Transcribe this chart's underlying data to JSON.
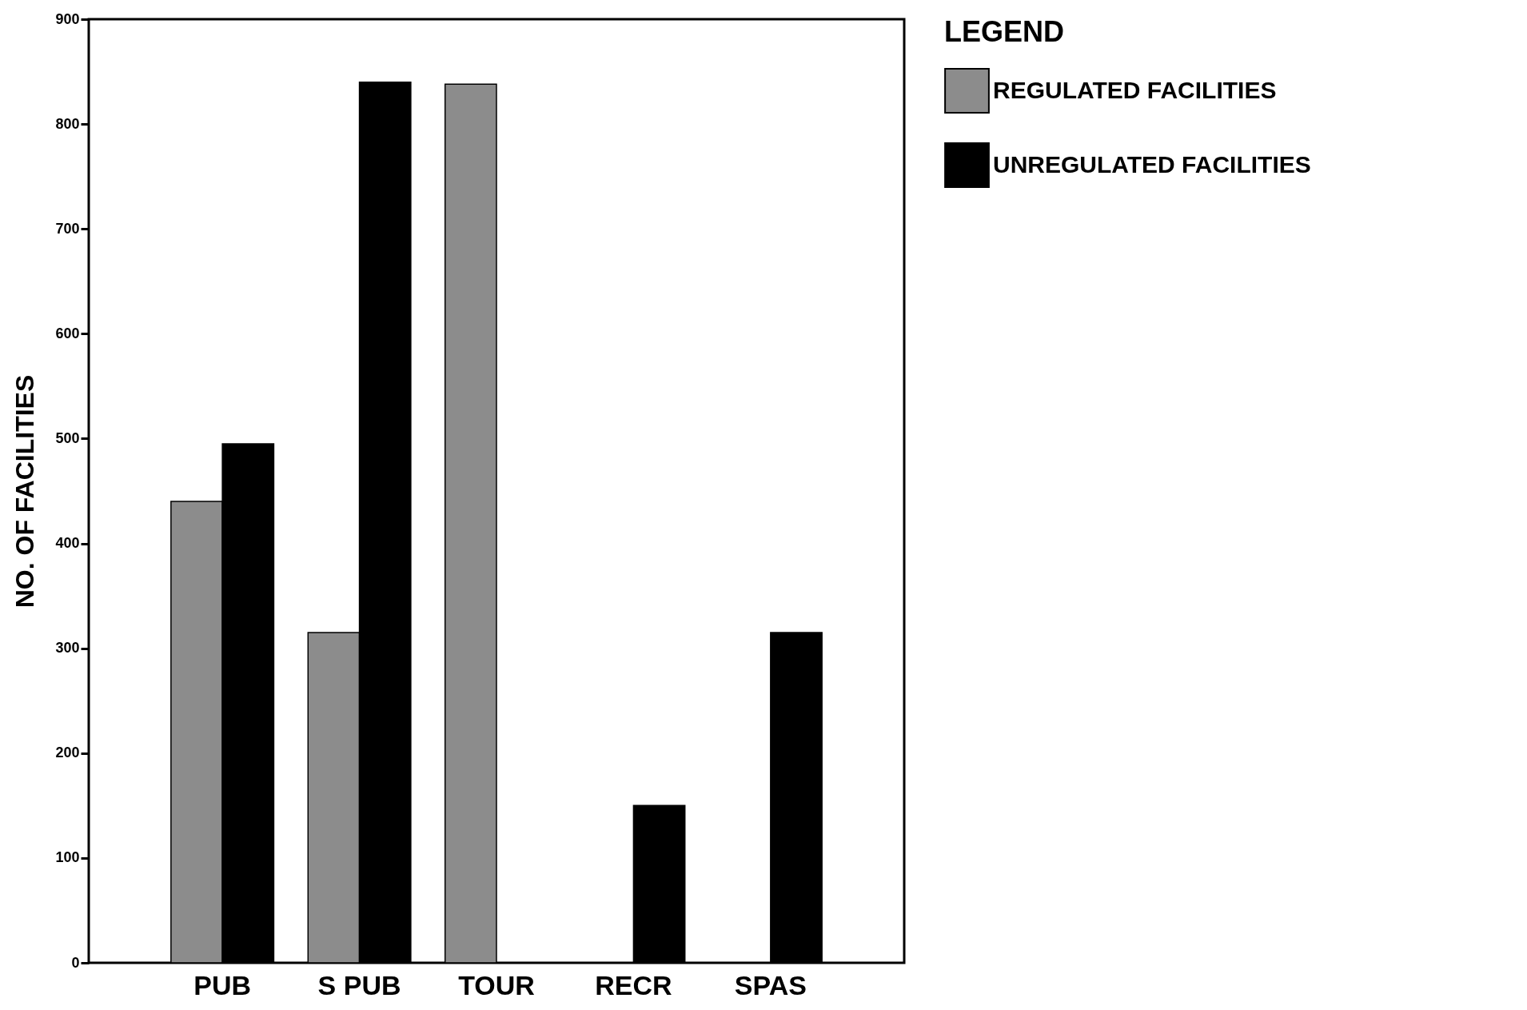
{
  "chart_data": {
    "type": "bar",
    "ylabel": "NO. OF FACILITIES",
    "legend_title": "LEGEND",
    "categories": [
      "PUB",
      "S PUB",
      "TOUR",
      "RECR",
      "SPAS"
    ],
    "series": [
      {
        "name": "REGULATED FACILITIES",
        "color": "#8c8c8c",
        "values": [
          440,
          315,
          838,
          0,
          0
        ]
      },
      {
        "name": "UNREGULATED FACILITIES",
        "color": "#000000",
        "values": [
          495,
          840,
          0,
          150,
          315
        ]
      }
    ],
    "ylim": [
      0,
      900
    ],
    "yticks": [
      0,
      100,
      200,
      300,
      400,
      500,
      600,
      700,
      800,
      900
    ],
    "grid": false,
    "legend": "top right"
  }
}
